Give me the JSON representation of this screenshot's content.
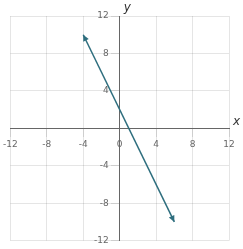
{
  "chart_data": {
    "type": "line",
    "xlabel": "x",
    "ylabel": "y",
    "x": [
      -4,
      6
    ],
    "values": [
      10,
      -10
    ],
    "color": "#2e6e7e",
    "xlim": [
      -12,
      12
    ],
    "ylim": [
      -12,
      12
    ],
    "xticks": [
      -12,
      -8,
      -4,
      0,
      4,
      8,
      12
    ],
    "yticks": [
      -12,
      -8,
      -4,
      4,
      8,
      12
    ],
    "grid": true
  }
}
